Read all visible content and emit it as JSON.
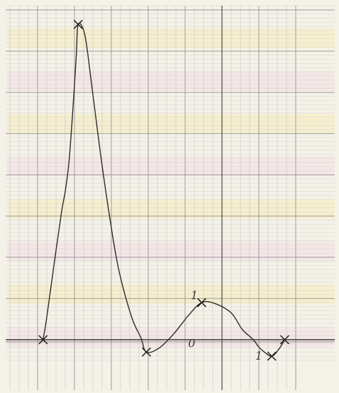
{
  "chart_data": {
    "type": "line",
    "title": "",
    "xlabel": "",
    "ylabel": "",
    "x_grid_step": 0.25,
    "y_grid_step": 0.1,
    "xlim": [
      -6.2,
      2.0
    ],
    "ylim": [
      -0.6,
      8.5
    ],
    "grid": true,
    "series": [
      {
        "name": "",
        "points": [
          {
            "x": -4.85,
            "y": 0.0
          },
          {
            "x": -4.75,
            "y": 0.55
          },
          {
            "x": -4.55,
            "y": 1.85
          },
          {
            "x": -4.35,
            "y": 3.1
          },
          {
            "x": -4.25,
            "y": 3.6
          },
          {
            "x": -4.15,
            "y": 4.3
          },
          {
            "x": -4.05,
            "y": 5.5
          },
          {
            "x": -3.95,
            "y": 6.9
          },
          {
            "x": -3.9,
            "y": 7.65
          },
          {
            "x": -3.72,
            "y": 7.4
          },
          {
            "x": -3.55,
            "y": 6.3
          },
          {
            "x": -3.3,
            "y": 4.55
          },
          {
            "x": -3.05,
            "y": 3.0
          },
          {
            "x": -2.8,
            "y": 1.7
          },
          {
            "x": -2.45,
            "y": 0.55
          },
          {
            "x": -2.2,
            "y": 0.05
          },
          {
            "x": -2.05,
            "y": -0.3
          },
          {
            "x": -1.7,
            "y": -0.2
          },
          {
            "x": -1.3,
            "y": 0.15
          },
          {
            "x": -0.9,
            "y": 0.6
          },
          {
            "x": -0.55,
            "y": 0.9
          },
          {
            "x": -0.2,
            "y": 0.88
          },
          {
            "x": 0.25,
            "y": 0.65
          },
          {
            "x": 0.55,
            "y": 0.25
          },
          {
            "x": 0.85,
            "y": 0.0
          },
          {
            "x": 1.0,
            "y": -0.18
          },
          {
            "x": 1.15,
            "y": -0.3
          },
          {
            "x": 1.35,
            "y": -0.4
          },
          {
            "x": 1.55,
            "y": -0.22
          },
          {
            "x": 1.7,
            "y": 0.0
          }
        ]
      }
    ],
    "markers": [
      {
        "x": -4.85,
        "y": 0.0
      },
      {
        "x": -3.9,
        "y": 7.65
      },
      {
        "x": -2.05,
        "y": -0.3
      },
      {
        "x": -0.55,
        "y": 0.9
      },
      {
        "x": 1.35,
        "y": -0.4
      },
      {
        "x": 1.7,
        "y": 0.0
      }
    ],
    "annotations": [
      {
        "text": "1",
        "x": -0.75,
        "y": 0.98
      },
      {
        "text": "0",
        "x": -0.82,
        "y": -0.18
      },
      {
        "text": "1",
        "x": 1.0,
        "y": -0.48
      }
    ]
  }
}
